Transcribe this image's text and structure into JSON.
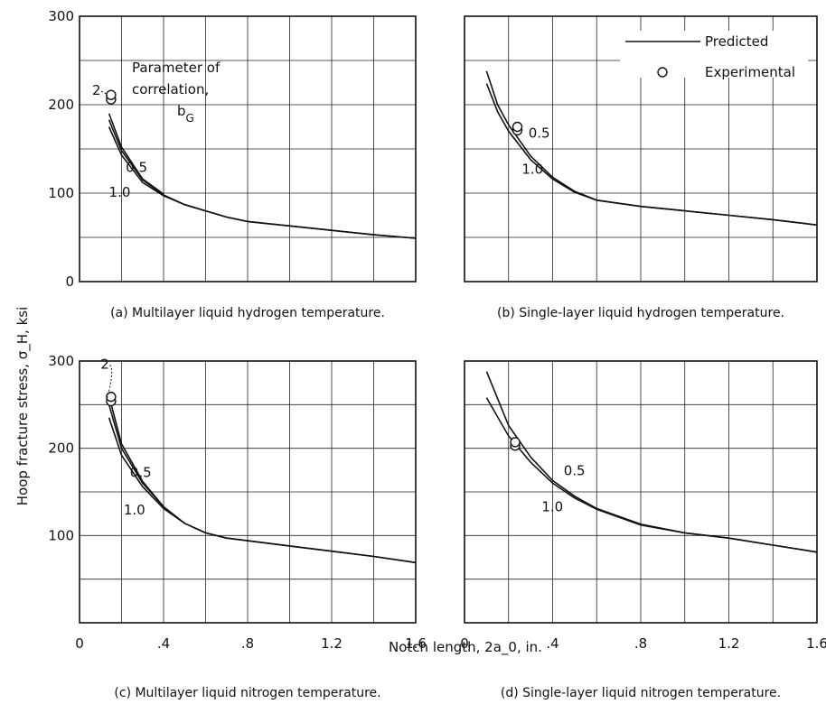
{
  "figure": {
    "ylabel": "Hoop fracture stress, σ_H, ksi",
    "xlabel": "Notch length, 2a_0, in.",
    "legend": {
      "predicted": "Predicted",
      "experimental": "Experimental"
    },
    "parameter_label": [
      "Parameter of",
      "correlation,",
      "b_G"
    ]
  },
  "chart_data": [
    {
      "type": "line",
      "caption": "(a) Multilayer liquid hydrogen temperature.",
      "xlim": [
        0,
        1.6
      ],
      "ylim": [
        0,
        300
      ],
      "yticks": [
        "0",
        "100",
        "200",
        "300"
      ],
      "xticks": [],
      "series": [
        {
          "name": "0.5",
          "x": [
            0.14,
            0.2,
            0.3,
            0.4,
            0.5,
            0.6,
            0.7,
            0.8,
            1.0,
            1.2,
            1.4,
            1.6
          ],
          "y": [
            183,
            148,
            115,
            98,
            87,
            80,
            73,
            68,
            63,
            58,
            53,
            49
          ]
        },
        {
          "name": "1.0",
          "x": [
            0.14,
            0.2,
            0.3,
            0.4,
            0.5,
            0.6,
            0.7,
            0.8,
            1.0,
            1.2,
            1.4,
            1.6
          ],
          "y": [
            175,
            143,
            112,
            97,
            87,
            80,
            73,
            68,
            63,
            58,
            53,
            49
          ]
        },
        {
          "name": "2",
          "x": [
            0.14,
            0.2,
            0.3,
            0.4
          ],
          "y": [
            190,
            152,
            116,
            99
          ]
        }
      ],
      "experimental": [
        {
          "x": 0.15,
          "y": 206
        },
        {
          "x": 0.15,
          "y": 211
        }
      ],
      "labels": [
        {
          "text": "2",
          "x": 0.06,
          "y": 211
        },
        {
          "text": "0.5",
          "x": 0.22,
          "y": 124
        },
        {
          "text": "1.0",
          "x": 0.14,
          "y": 96
        }
      ]
    },
    {
      "type": "line",
      "caption": "(b) Single-layer liquid hydrogen temperature.",
      "xlim": [
        0,
        1.6
      ],
      "ylim": [
        0,
        300
      ],
      "yticks": [],
      "xticks": [],
      "series": [
        {
          "name": "0.5",
          "x": [
            0.1,
            0.15,
            0.2,
            0.3,
            0.4,
            0.5,
            0.6,
            0.8,
            1.0,
            1.2,
            1.4,
            1.6
          ],
          "y": [
            238,
            200,
            177,
            142,
            118,
            102,
            92,
            85,
            80,
            75,
            70,
            64
          ]
        },
        {
          "name": "1.0",
          "x": [
            0.1,
            0.15,
            0.2,
            0.3,
            0.4,
            0.5,
            0.6,
            0.8,
            1.0,
            1.2,
            1.4,
            1.6
          ],
          "y": [
            224,
            192,
            170,
            138,
            116,
            101,
            92,
            85,
            80,
            75,
            70,
            64
          ]
        }
      ],
      "experimental": [
        {
          "x": 0.24,
          "y": 171
        },
        {
          "x": 0.24,
          "y": 175
        }
      ],
      "labels": [
        {
          "text": "0.5",
          "x": 0.29,
          "y": 163
        },
        {
          "text": "1.0",
          "x": 0.26,
          "y": 122
        }
      ],
      "legend_position": "top-right"
    },
    {
      "type": "line",
      "caption": "(c) Multilayer liquid nitrogen temperature.",
      "xlim": [
        0,
        1.6
      ],
      "ylim": [
        0,
        300
      ],
      "yticks": [
        "100",
        "200",
        "300"
      ],
      "xticks": [
        "0",
        ".4",
        ".8",
        "1.2",
        "1.6"
      ],
      "series": [
        {
          "name": "0.5",
          "x": [
            0.14,
            0.2,
            0.3,
            0.4,
            0.5,
            0.6,
            0.7,
            0.8,
            1.0,
            1.2,
            1.4,
            1.6
          ],
          "y": [
            250,
            200,
            160,
            133,
            114,
            103,
            97,
            94,
            88,
            82,
            76,
            69
          ]
        },
        {
          "name": "1.0",
          "x": [
            0.14,
            0.2,
            0.3,
            0.4,
            0.5,
            0.6,
            0.7,
            0.8,
            1.0,
            1.2,
            1.4,
            1.6
          ],
          "y": [
            235,
            192,
            156,
            131,
            114,
            103,
            97,
            94,
            88,
            82,
            76,
            69
          ]
        },
        {
          "name": "2",
          "x": [
            0.14,
            0.2,
            0.3,
            0.4
          ],
          "y": [
            260,
            205,
            162,
            133
          ]
        }
      ],
      "experimental": [
        {
          "x": 0.15,
          "y": 254
        },
        {
          "x": 0.15,
          "y": 259
        }
      ],
      "labels": [
        {
          "text": "2",
          "x": 0.1,
          "y": 291
        },
        {
          "text": "0.5",
          "x": 0.24,
          "y": 167
        },
        {
          "text": "1.0",
          "x": 0.21,
          "y": 124
        }
      ]
    },
    {
      "type": "line",
      "caption": "(d) Single-layer liquid nitrogen temperature.",
      "xlim": [
        0,
        1.6
      ],
      "ylim": [
        0,
        300
      ],
      "yticks": [],
      "xticks": [
        "0",
        ".4",
        ".8",
        "1.2",
        "1.6"
      ],
      "series": [
        {
          "name": "0.5",
          "x": [
            0.1,
            0.2,
            0.3,
            0.4,
            0.5,
            0.6,
            0.8,
            1.0,
            1.2,
            1.4,
            1.6
          ],
          "y": [
            288,
            226,
            190,
            163,
            145,
            131,
            113,
            103,
            97,
            89,
            81
          ]
        },
        {
          "name": "1.0",
          "x": [
            0.1,
            0.2,
            0.3,
            0.4,
            0.5,
            0.6,
            0.8,
            1.0,
            1.2,
            1.4,
            1.6
          ],
          "y": [
            258,
            214,
            184,
            160,
            143,
            130,
            112,
            103,
            97,
            89,
            81
          ]
        }
      ],
      "experimental": [
        {
          "x": 0.23,
          "y": 203
        },
        {
          "x": 0.23,
          "y": 207
        }
      ],
      "labels": [
        {
          "text": "0.5",
          "x": 0.45,
          "y": 169
        },
        {
          "text": "1.0",
          "x": 0.35,
          "y": 128
        }
      ]
    }
  ]
}
